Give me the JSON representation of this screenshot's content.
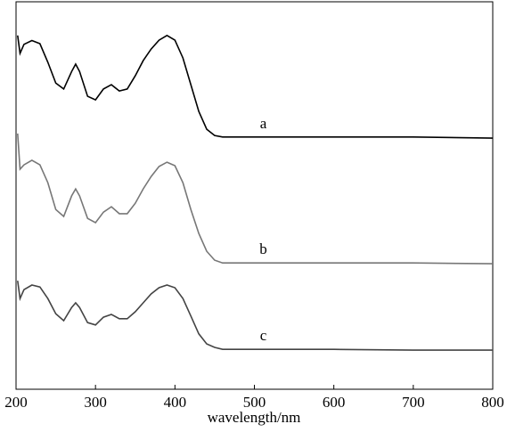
{
  "chart_data": {
    "type": "line",
    "xlabel": "wavelength/nm",
    "x": [
      202,
      205,
      210,
      220,
      230,
      240,
      250,
      260,
      270,
      275,
      280,
      290,
      300,
      310,
      320,
      330,
      340,
      350,
      360,
      370,
      380,
      390,
      400,
      410,
      420,
      430,
      440,
      450,
      460,
      500,
      600,
      700,
      800
    ],
    "series": [
      {
        "name": "a",
        "color": "#000000",
        "values": [
          91.3,
          86.7,
          89.0,
          90.0,
          89.2,
          84.4,
          79.0,
          77.5,
          82.0,
          83.9,
          82.0,
          75.6,
          74.7,
          77.5,
          78.6,
          77.0,
          77.5,
          80.9,
          84.8,
          87.8,
          90.1,
          91.3,
          90.1,
          85.5,
          78.6,
          71.7,
          67.1,
          65.5,
          65.1,
          65.1,
          65.1,
          65.1,
          64.8
        ]
      },
      {
        "name": "b",
        "color": "#777777",
        "values": [
          66.0,
          56.8,
          57.9,
          59.1,
          57.9,
          53.3,
          46.4,
          44.6,
          49.9,
          51.7,
          49.9,
          44.1,
          43.0,
          45.7,
          47.1,
          45.3,
          45.3,
          48.0,
          51.7,
          54.9,
          57.5,
          58.6,
          57.7,
          53.3,
          46.4,
          40.2,
          35.6,
          33.3,
          32.6,
          32.6,
          32.6,
          32.6,
          32.4
        ]
      },
      {
        "name": "c",
        "color": "#444444",
        "values": [
          28.0,
          23.4,
          25.7,
          26.9,
          26.4,
          23.4,
          19.5,
          17.7,
          21.1,
          22.3,
          21.1,
          17.2,
          16.6,
          18.6,
          19.3,
          18.2,
          18.2,
          20.0,
          22.3,
          24.6,
          26.2,
          26.9,
          26.2,
          23.4,
          18.9,
          14.3,
          11.7,
          10.8,
          10.3,
          10.3,
          10.3,
          10.1,
          10.1
        ]
      }
    ],
    "xlim": [
      200,
      800
    ],
    "xticks": [
      200,
      300,
      400,
      500,
      600,
      700,
      800
    ],
    "ylim": [
      0,
      100
    ]
  }
}
